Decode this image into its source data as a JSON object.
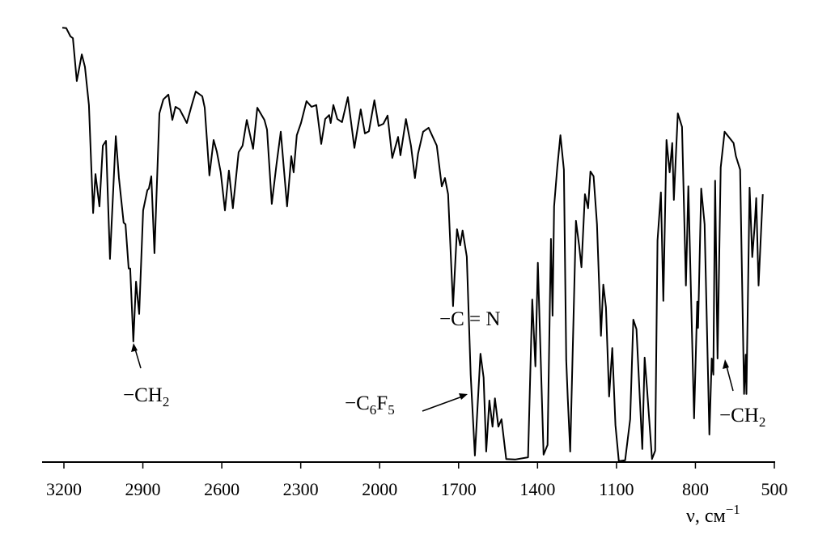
{
  "chart_data": {
    "type": "line",
    "title": "",
    "xlabel": "ν, см",
    "xlabel_superscript": "−1",
    "ylabel": "",
    "xlim": [
      3200,
      500
    ],
    "x_reversed": true,
    "ylim": [
      0,
      100
    ],
    "grid": false,
    "line_color": "#000000",
    "x_ticks": [
      3200,
      2900,
      2600,
      2300,
      2000,
      1700,
      1400,
      1100,
      800,
      500
    ],
    "x_tick_labels": [
      "3200",
      "2900",
      "2600",
      "2300",
      "2000",
      "1700",
      "1400",
      "1100",
      "800",
      "500"
    ],
    "series": [
      {
        "points": [
          [
            3206,
            99.4
          ],
          [
            3191,
            99.3
          ],
          [
            3175,
            97.4
          ],
          [
            3166,
            97.0
          ],
          [
            3151,
            87.2
          ],
          [
            3132,
            93.3
          ],
          [
            3120,
            90.4
          ],
          [
            3105,
            81.7
          ],
          [
            3095,
            66.3
          ],
          [
            3089,
            57.0
          ],
          [
            3080,
            65.9
          ],
          [
            3065,
            58.5
          ],
          [
            3052,
            72.4
          ],
          [
            3040,
            73.5
          ],
          [
            3025,
            46.5
          ],
          [
            3003,
            74.6
          ],
          [
            2991,
            65.0
          ],
          [
            2973,
            54.8
          ],
          [
            2966,
            54.4
          ],
          [
            2954,
            44.3
          ],
          [
            2948,
            44.3
          ],
          [
            2936,
            27.6
          ],
          [
            2926,
            41.3
          ],
          [
            2914,
            33.9
          ],
          [
            2899,
            57.6
          ],
          [
            2883,
            62.2
          ],
          [
            2877,
            62.6
          ],
          [
            2868,
            65.4
          ],
          [
            2856,
            47.8
          ],
          [
            2837,
            79.8
          ],
          [
            2822,
            83.0
          ],
          [
            2803,
            84.1
          ],
          [
            2788,
            78.3
          ],
          [
            2776,
            81.3
          ],
          [
            2760,
            80.7
          ],
          [
            2733,
            77.6
          ],
          [
            2714,
            81.7
          ],
          [
            2699,
            84.8
          ],
          [
            2674,
            83.7
          ],
          [
            2665,
            81.1
          ],
          [
            2647,
            65.6
          ],
          [
            2631,
            73.7
          ],
          [
            2619,
            71.1
          ],
          [
            2604,
            66.3
          ],
          [
            2588,
            57.6
          ],
          [
            2573,
            66.7
          ],
          [
            2558,
            58.1
          ],
          [
            2536,
            70.9
          ],
          [
            2521,
            72.4
          ],
          [
            2505,
            78.3
          ],
          [
            2481,
            71.7
          ],
          [
            2465,
            81.1
          ],
          [
            2438,
            78.3
          ],
          [
            2428,
            76.1
          ],
          [
            2410,
            59.1
          ],
          [
            2392,
            68.1
          ],
          [
            2376,
            75.6
          ],
          [
            2352,
            58.5
          ],
          [
            2336,
            70.0
          ],
          [
            2327,
            66.3
          ],
          [
            2315,
            74.8
          ],
          [
            2299,
            77.6
          ],
          [
            2278,
            82.6
          ],
          [
            2259,
            81.3
          ],
          [
            2241,
            81.7
          ],
          [
            2222,
            72.8
          ],
          [
            2207,
            78.5
          ],
          [
            2192,
            79.4
          ],
          [
            2186,
            77.6
          ],
          [
            2176,
            81.7
          ],
          [
            2161,
            78.5
          ],
          [
            2143,
            77.8
          ],
          [
            2121,
            83.5
          ],
          [
            2096,
            71.9
          ],
          [
            2072,
            80.7
          ],
          [
            2056,
            75.2
          ],
          [
            2041,
            75.7
          ],
          [
            2020,
            82.8
          ],
          [
            2004,
            76.9
          ],
          [
            1986,
            77.4
          ],
          [
            1970,
            79.3
          ],
          [
            1952,
            69.6
          ],
          [
            1930,
            74.4
          ],
          [
            1921,
            70.2
          ],
          [
            1900,
            78.5
          ],
          [
            1881,
            72.4
          ],
          [
            1866,
            65.0
          ],
          [
            1854,
            70.6
          ],
          [
            1835,
            75.6
          ],
          [
            1814,
            76.5
          ],
          [
            1783,
            72.4
          ],
          [
            1764,
            63.1
          ],
          [
            1752,
            65.0
          ],
          [
            1740,
            61.3
          ],
          [
            1721,
            35.7
          ],
          [
            1706,
            53.3
          ],
          [
            1694,
            49.6
          ],
          [
            1685,
            53.0
          ],
          [
            1669,
            47.0
          ],
          [
            1654,
            20.0
          ],
          [
            1638,
            1.5
          ],
          [
            1617,
            24.8
          ],
          [
            1605,
            19.3
          ],
          [
            1595,
            2.4
          ],
          [
            1583,
            14.1
          ],
          [
            1571,
            8.1
          ],
          [
            1562,
            14.6
          ],
          [
            1549,
            8.1
          ],
          [
            1537,
            9.8
          ],
          [
            1519,
            0.7
          ],
          [
            1485,
            0.6
          ],
          [
            1436,
            1.1
          ],
          [
            1420,
            37.2
          ],
          [
            1408,
            21.9
          ],
          [
            1399,
            45.6
          ],
          [
            1377,
            1.7
          ],
          [
            1362,
            3.9
          ],
          [
            1349,
            51.1
          ],
          [
            1343,
            33.5
          ],
          [
            1337,
            58.5
          ],
          [
            1325,
            67.4
          ],
          [
            1313,
            74.8
          ],
          [
            1300,
            66.9
          ],
          [
            1291,
            23.3
          ],
          [
            1285,
            14.6
          ],
          [
            1276,
            2.4
          ],
          [
            1254,
            55.2
          ],
          [
            1242,
            49.6
          ],
          [
            1233,
            44.6
          ],
          [
            1220,
            61.3
          ],
          [
            1208,
            58.1
          ],
          [
            1199,
            66.5
          ],
          [
            1187,
            65.4
          ],
          [
            1174,
            54.4
          ],
          [
            1159,
            28.9
          ],
          [
            1150,
            40.6
          ],
          [
            1140,
            35.4
          ],
          [
            1128,
            15.0
          ],
          [
            1116,
            26.1
          ],
          [
            1104,
            8.5
          ],
          [
            1091,
            0.2
          ],
          [
            1067,
            0.4
          ],
          [
            1048,
            9.8
          ],
          [
            1036,
            32.6
          ],
          [
            1024,
            30.4
          ],
          [
            1002,
            3.0
          ],
          [
            993,
            23.9
          ],
          [
            984,
            16.9
          ],
          [
            965,
            0.7
          ],
          [
            953,
            2.6
          ],
          [
            944,
            50.7
          ],
          [
            931,
            61.7
          ],
          [
            922,
            36.9
          ],
          [
            910,
            73.7
          ],
          [
            898,
            66.3
          ],
          [
            888,
            73.0
          ],
          [
            882,
            60.0
          ],
          [
            867,
            79.8
          ],
          [
            851,
            76.7
          ],
          [
            836,
            40.4
          ],
          [
            827,
            63.1
          ],
          [
            805,
            10.0
          ],
          [
            793,
            36.7
          ],
          [
            790,
            30.7
          ],
          [
            778,
            62.6
          ],
          [
            765,
            54.4
          ],
          [
            747,
            6.3
          ],
          [
            738,
            23.7
          ],
          [
            732,
            20.0
          ],
          [
            725,
            64.4
          ],
          [
            716,
            23.7
          ],
          [
            704,
            67.4
          ],
          [
            689,
            75.6
          ],
          [
            655,
            73.0
          ],
          [
            646,
            70.0
          ],
          [
            630,
            66.9
          ],
          [
            615,
            15.6
          ],
          [
            609,
            24.6
          ],
          [
            606,
            15.6
          ],
          [
            594,
            62.8
          ],
          [
            584,
            46.9
          ],
          [
            575,
            53.9
          ],
          [
            569,
            60.4
          ],
          [
            560,
            40.4
          ],
          [
            544,
            61.3
          ]
        ]
      }
    ],
    "annotations": [
      {
        "text": "−CH",
        "subscript": "2",
        "target": 2936
      },
      {
        "text": "−C = N",
        "subscript": "",
        "target": 1721
      },
      {
        "text": "−C",
        "subscript": "6",
        "text2": "F",
        "subscript2": "5",
        "target": 1654
      },
      {
        "text": "−CH",
        "subscript": "2",
        "target": 747
      }
    ]
  }
}
